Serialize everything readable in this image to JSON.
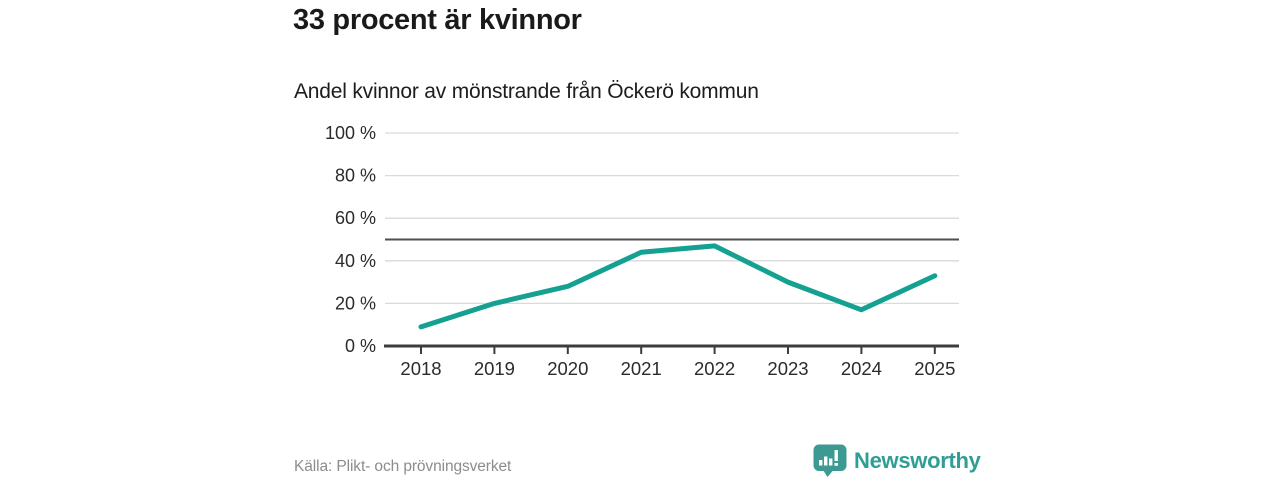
{
  "header": {
    "title": "33 procent är kvinnor",
    "subtitle": "Andel kvinnor av mönstrande från Öckerö kommun"
  },
  "chart_data": {
    "type": "line",
    "title": "33 procent är kvinnor",
    "subtitle": "Andel kvinnor av mönstrande från Öckerö kommun",
    "categories": [
      "2018",
      "2019",
      "2020",
      "2021",
      "2022",
      "2023",
      "2024",
      "2025"
    ],
    "series": [
      {
        "name": "Andel kvinnor av mönstrande",
        "values": [
          9,
          20,
          28,
          44,
          47,
          30,
          17,
          33
        ]
      }
    ],
    "unit": "%",
    "xlabel": "",
    "ylabel": "",
    "ylim": [
      0,
      100
    ],
    "y_ticks": [
      {
        "value": 0,
        "label": "0 %"
      },
      {
        "value": 20,
        "label": "20 %"
      },
      {
        "value": 40,
        "label": "40 %"
      },
      {
        "value": 60,
        "label": "60 %"
      },
      {
        "value": 80,
        "label": "80 %"
      },
      {
        "value": 100,
        "label": "100 %"
      }
    ],
    "reference_line": 50,
    "grid": true,
    "legend": "none",
    "colors": {
      "line": "#14a191",
      "grid": "#dadada",
      "reference": "#4f4f4f",
      "axis": "#3c3c3c",
      "axis_text": "#2b2b2b"
    }
  },
  "footer": {
    "source": "Källa: Plikt- och prövningsverket",
    "brand": "Newsworthy",
    "brand_color": "#2f9e94",
    "brand_icon": "bar-chart-speech-bubble-icon"
  }
}
